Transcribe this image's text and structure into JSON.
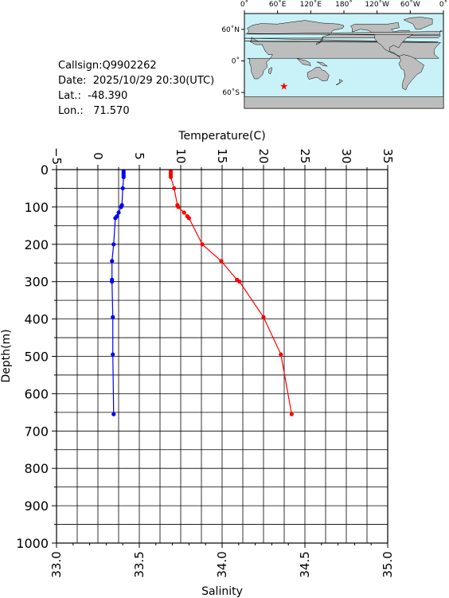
{
  "info": {
    "callsign": "Callsign:Q9902262",
    "date": "Date:  2025/10/29 20:30(UTC)",
    "lat": "Lat.:  -48.390",
    "lon": "Lon.:   71.570"
  },
  "map": {
    "lon_ticks": [
      "0˚",
      "60˚E",
      "120˚E",
      "180˚",
      "120˚W",
      "60˚W",
      "0˚"
    ],
    "lat_ticks": [
      "60˚N",
      "0˚",
      "60˚S"
    ],
    "ocean_color": "#c8f2f8",
    "land_color": "#bdbdbd",
    "marker_color": "#ff0000",
    "marker": {
      "lon": 71.57,
      "lat": -48.39
    }
  },
  "chart_data": {
    "type": "line",
    "ylabel": "Depth(m)",
    "ylim": [
      1000,
      0
    ],
    "y_ticks": [
      "0",
      "100",
      "200",
      "300",
      "400",
      "500",
      "600",
      "700",
      "800",
      "900",
      "1000"
    ],
    "top_axis": {
      "label": "Temperature(C)",
      "range": [
        -5,
        35
      ],
      "ticks": [
        "−5",
        "0",
        "5",
        "10",
        "15",
        "20",
        "25",
        "30",
        "35"
      ]
    },
    "bottom_axis": {
      "label": "Salinity",
      "range": [
        33.0,
        35.0
      ],
      "ticks": [
        "33.0",
        "33.5",
        "34.0",
        "34.5",
        "35.0"
      ]
    },
    "grid": true,
    "series": [
      {
        "axis": "temperature",
        "color": "#ff0000",
        "depth": [
          5,
          10,
          15,
          20,
          50,
          95,
          100,
          115,
          125,
          130,
          200,
          245,
          295,
          300,
          395,
          495,
          655
        ],
        "values": [
          8.8,
          8.8,
          8.8,
          8.8,
          9.2,
          9.6,
          9.7,
          10.4,
          10.8,
          11.0,
          12.6,
          14.9,
          16.8,
          17.1,
          20.0,
          22.1,
          23.4
        ]
      },
      {
        "axis": "salinity",
        "color": "#0000ff",
        "depth": [
          5,
          10,
          15,
          20,
          50,
          95,
          100,
          115,
          125,
          130,
          200,
          245,
          295,
          300,
          395,
          495,
          655
        ],
        "values": [
          33.405,
          33.405,
          33.405,
          33.405,
          33.4,
          33.395,
          33.39,
          33.375,
          33.365,
          33.355,
          33.345,
          33.335,
          33.335,
          33.335,
          33.34,
          33.34,
          33.345
        ]
      }
    ]
  }
}
